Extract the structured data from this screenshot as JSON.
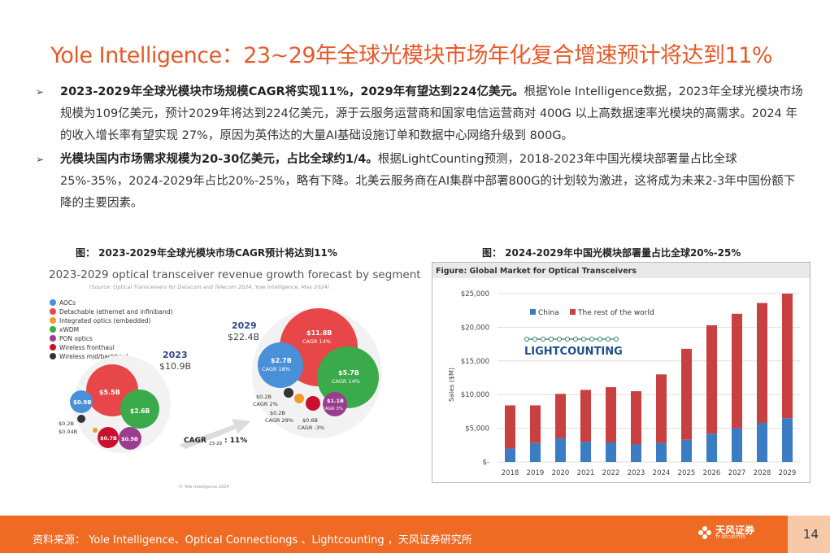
{
  "title": "Yole Intelligence：23~29年全球光模块市场年化复合增速预计将达到11%",
  "bullets": [
    {
      "marker": "➢",
      "bold": "2023-2029年全球光模块市场规模CAGR将实现11%，2029年有望达到224亿美元。",
      "text": "根据Yole Intelligence数据，2023年全球光模块市场规模为109亿美元，预计2029年将达到224亿美元，源于云服务运营商和国家电信运营商对 400G 以上高数据速率光模块的高需求。2024 年的收入增长率有望实现 27%，原因为英伟达的大量AI基础设施订单和数据中心网络升级到 800G。"
    },
    {
      "marker": "➢",
      "bold": "光模块国内市场需求规模为20-30亿美元，占比全球约1/4。",
      "text": "根据LightCounting预测，2018-2023年中国光模块部署量占比全球25%-35%，2024-2029年占比20%-25%，略有下降。北美云服务商在AI集群中部署800G的计划较为激进，这将成为未来2-3年中国份额下降的主要因素。"
    }
  ],
  "captions": {
    "left": "图： 2023-2029年全球光模块市场CAGR预计将达到11%",
    "right": "图： 2024-2029年中国光模块部署量占比全球20%-25%"
  },
  "left_chart": {
    "title": "2023-2029 optical transceiver revenue growth forecast by segment",
    "source": "(Source: Optical Transceivers for Datacom and Telecom 2024, Yole Intelligence, May 2024)",
    "legend": [
      {
        "label": "AOCs",
        "color": "#4a90d9"
      },
      {
        "label": "Detachable (ethernet and infiniband)",
        "color": "#e8474a"
      },
      {
        "label": "Integrated optics (embedded)",
        "color": "#f39a2b"
      },
      {
        "label": "xWDM",
        "color": "#3aaa4a"
      },
      {
        "label": "PON optics",
        "color": "#9b3d8f"
      },
      {
        "label": "Wireless fronthaul",
        "color": "#c8102e"
      },
      {
        "label": "Wireless mid/backhaul",
        "color": "#333333"
      }
    ],
    "y2023": {
      "year": "2023",
      "total": "$10.9B"
    },
    "y2029": {
      "year": "2029",
      "total": "$22.4B"
    },
    "bubbles2023": {
      "detachable": "$5.5B",
      "xwdm": "$2.6B",
      "aoc": "$0.9B",
      "fronthaul": "$0.7B",
      "pon": "$0.9B",
      "midback": "$0.2B",
      "integrated": "$0.04B"
    },
    "bubbles2029": {
      "detachable": "$11.8B",
      "detachable_cagr": "CAGR 14%",
      "aoc": "$2.7B",
      "aoc_cagr": "CAGR 18%",
      "xwdm": "$5.7B",
      "xwdm_cagr": "CAGR 14%",
      "pon": "$1.1B",
      "pon_cagr": "CAGR 3%",
      "midback": "$0.2B",
      "midback_cagr": "CAGR 2%",
      "integrated": "$0.2B",
      "integrated_cagr": "CAGR 29%",
      "fronthaul": "$0.6B",
      "fronthaul_cagr": "CAGR -3%"
    },
    "cagr_label": "CAGR",
    "cagr_sub": "23-29",
    "cagr_value": ": 11%",
    "watermark": "© Yole Intelligence 2024"
  },
  "chart_data": {
    "type": "bar",
    "stacked": true,
    "title": "Figure: Global Market for Optical Transceivers",
    "ylabel": "Sales ($M)",
    "xlabel": "",
    "categories": [
      "2018",
      "2019",
      "2020",
      "2021",
      "2022",
      "2023",
      "2024",
      "2025",
      "2026",
      "2027",
      "2028",
      "2029"
    ],
    "series": [
      {
        "name": "China",
        "color": "#3b7dc4",
        "values": [
          2000,
          2800,
          3500,
          3000,
          2900,
          2600,
          2800,
          3300,
          4200,
          5000,
          5800,
          6500
        ]
      },
      {
        "name": "The rest of the world",
        "color": "#c94040",
        "values": [
          6400,
          5600,
          6600,
          7700,
          8200,
          7900,
          10200,
          13500,
          16100,
          17000,
          17800,
          18500
        ]
      }
    ],
    "ylim": [
      0,
      25000
    ],
    "yticks": [
      "$-",
      "$5,000",
      "$10,000",
      "$15,000",
      "$20,000",
      "$25,000"
    ],
    "legend": "top-left",
    "logo_text": "LIGHTCOUNTING"
  },
  "footer": {
    "source": "资料来源： Yole Intelligence、Optical Connectiongs 、Lightcounting ，天风证券研究所",
    "logo_text": "天风证券",
    "logo_sub": "TF SECURITIES",
    "page": "14"
  }
}
